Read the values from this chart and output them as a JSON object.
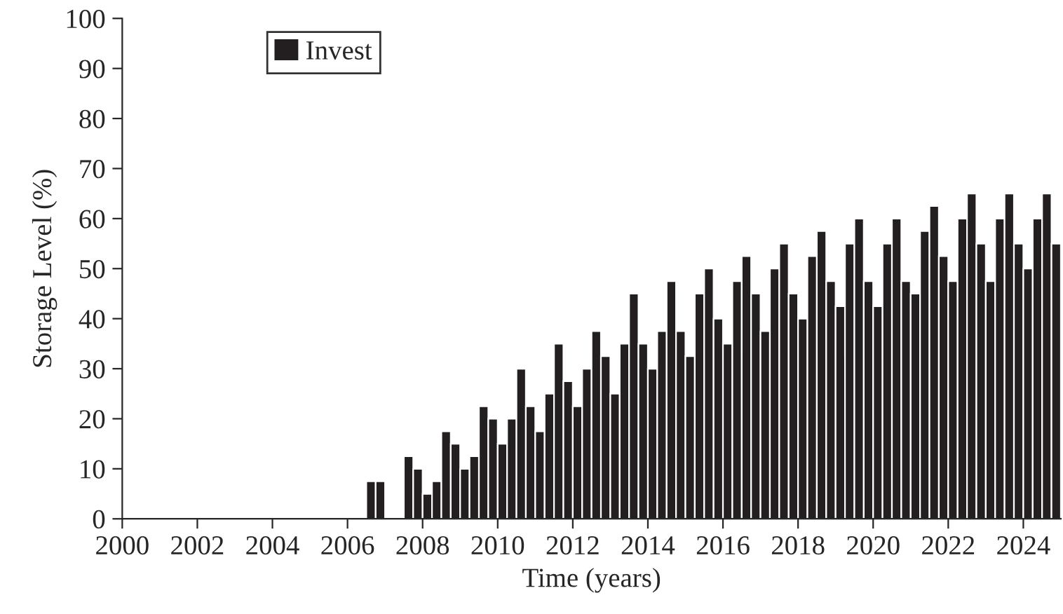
{
  "chart_data": {
    "type": "bar",
    "xlabel": "Time (years)",
    "ylabel": "Storage Level (%)",
    "x": [
      2006.625,
      2006.875,
      2007.125,
      2007.375,
      2007.625,
      2007.875,
      2008.125,
      2008.375,
      2008.625,
      2008.875,
      2009.125,
      2009.375,
      2009.625,
      2009.875,
      2010.125,
      2010.375,
      2010.625,
      2010.875,
      2011.125,
      2011.375,
      2011.625,
      2011.875,
      2012.125,
      2012.375,
      2012.625,
      2012.875,
      2013.125,
      2013.375,
      2013.625,
      2013.875,
      2014.125,
      2014.375,
      2014.625,
      2014.875,
      2015.125,
      2015.375,
      2015.625,
      2015.875,
      2016.125,
      2016.375,
      2016.625,
      2016.875,
      2017.125,
      2017.375,
      2017.625,
      2017.875,
      2018.125,
      2018.375,
      2018.625,
      2018.875,
      2019.125,
      2019.375,
      2019.625,
      2019.875,
      2020.125,
      2020.375,
      2020.625,
      2020.875,
      2021.125,
      2021.375,
      2021.625,
      2021.875,
      2022.125,
      2022.375,
      2022.625,
      2022.875,
      2023.125,
      2023.375,
      2023.625,
      2023.875,
      2024.125,
      2024.375,
      2024.625,
      2024.875
    ],
    "series": [
      {
        "name": "Invest",
        "color": "#231f20",
        "values": [
          7.5,
          7.5,
          null,
          null,
          12.5,
          10,
          5,
          7.5,
          17.5,
          15,
          10,
          12.5,
          22.5,
          20,
          15,
          20,
          30,
          22.5,
          17.5,
          25,
          35,
          27.5,
          22.5,
          30,
          37.5,
          32.5,
          25,
          35,
          45,
          35,
          30,
          37.5,
          47.5,
          37.5,
          32.5,
          45,
          50,
          40,
          35,
          47.5,
          52.5,
          45,
          37.5,
          50,
          55,
          45,
          40,
          52.5,
          57.5,
          47.5,
          42.5,
          55,
          60,
          47.5,
          42.5,
          55,
          60,
          47.5,
          45,
          57.5,
          62.5,
          52.5,
          47.5,
          60,
          65,
          55,
          47.5,
          60,
          65,
          55,
          50,
          60,
          65,
          55
        ]
      }
    ],
    "xlim": [
      2000,
      2025
    ],
    "xticks": [
      2000,
      2002,
      2004,
      2006,
      2008,
      2010,
      2012,
      2014,
      2016,
      2018,
      2020,
      2022,
      2024
    ],
    "ylim": [
      0,
      100
    ],
    "yticks": [
      0,
      10,
      20,
      30,
      40,
      50,
      60,
      70,
      80,
      90,
      100
    ],
    "legend": "top left",
    "grid": false
  }
}
